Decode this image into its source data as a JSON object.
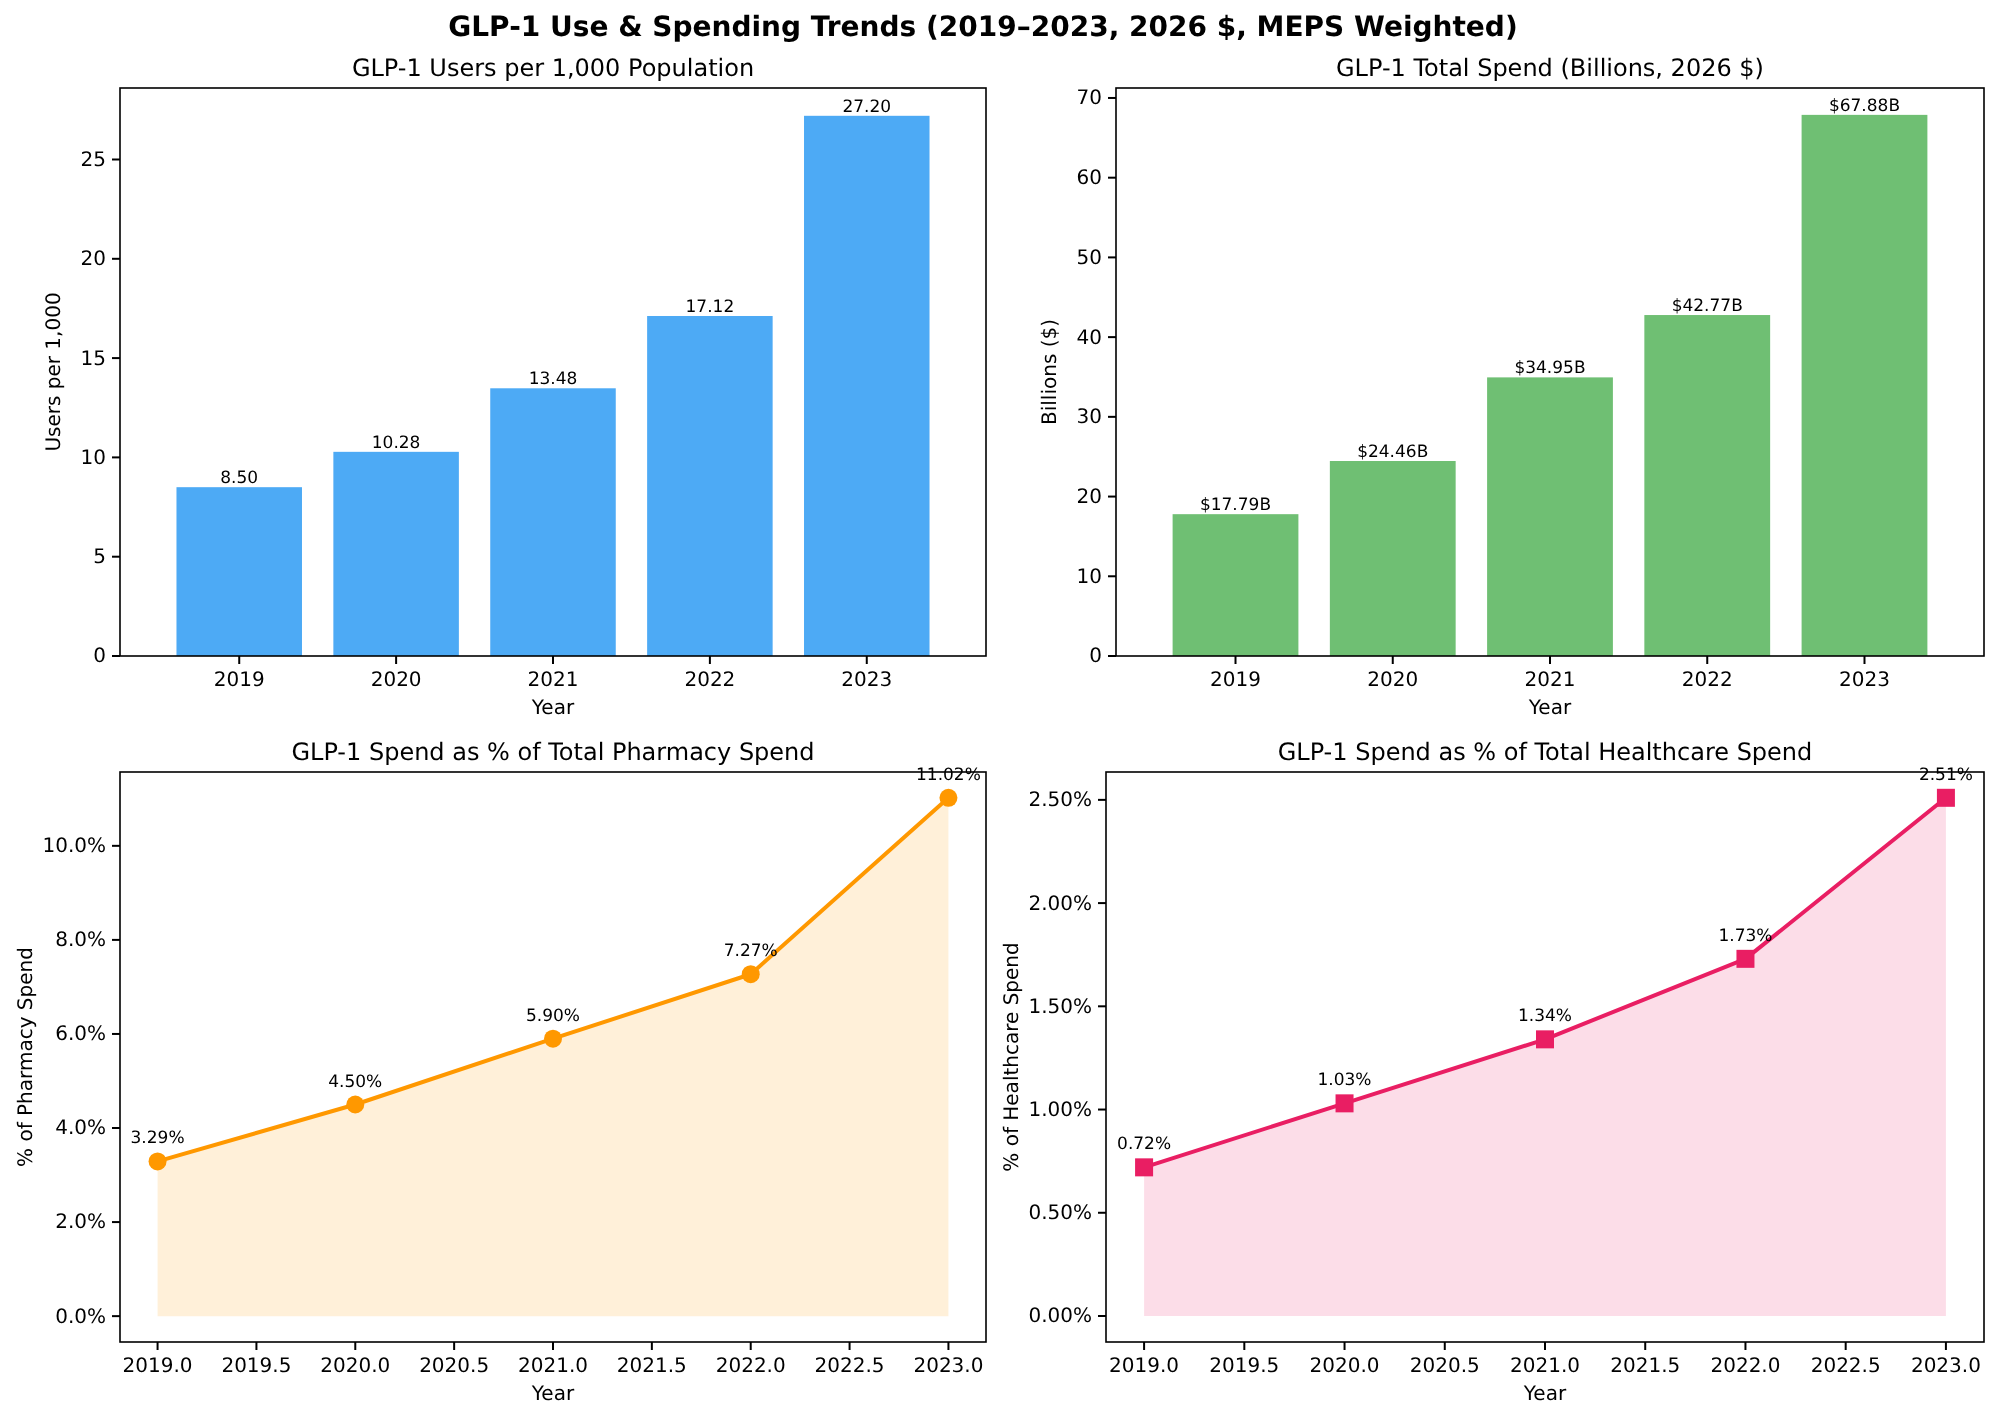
{
  "chart_data": [
    {
      "type": "other",
      "title": "GLP-1 Use & Spending Trends (2019–2023, 2026 $, MEPS Weighted)"
    },
    {
      "type": "bar",
      "title": "GLP-1 Users per 1,000 Population",
      "xlabel": "Year",
      "ylabel": "Users per 1,000",
      "categories": [
        "2019",
        "2020",
        "2021",
        "2022",
        "2023"
      ],
      "values": [
        8.5,
        10.28,
        13.48,
        17.12,
        27.2
      ],
      "value_labels": [
        "8.50",
        "10.28",
        "13.48",
        "17.12",
        "27.20"
      ],
      "color": "#4daaf5",
      "ylim": [
        0,
        28.6
      ],
      "yticks": [
        0,
        5,
        10,
        15,
        20,
        25
      ]
    },
    {
      "type": "bar",
      "title": "GLP-1 Total Spend (Billions, 2026 $)",
      "xlabel": "Year",
      "ylabel": "Billions ($)",
      "categories": [
        "2019",
        "2020",
        "2021",
        "2022",
        "2023"
      ],
      "values": [
        17.79,
        24.46,
        34.95,
        42.77,
        67.88
      ],
      "value_labels": [
        "$17.79B",
        "$24.46B",
        "$34.95B",
        "$42.77B",
        "$67.88B"
      ],
      "color": "#6fbf73",
      "ylim": [
        0,
        71.25
      ],
      "yticks": [
        0,
        10,
        20,
        30,
        40,
        50,
        60,
        70
      ]
    },
    {
      "type": "area",
      "title": "GLP-1 Spend as % of Total Pharmacy Spend",
      "xlabel": "Year",
      "ylabel": "% of Pharmacy Spend",
      "x": [
        2019,
        2020,
        2021,
        2022,
        2023
      ],
      "values": [
        3.29,
        4.5,
        5.9,
        7.27,
        11.02
      ],
      "value_labels": [
        "3.29%",
        "4.50%",
        "5.90%",
        "7.27%",
        "11.02%"
      ],
      "color": "#ff9800",
      "marker": "circle",
      "xlim": [
        2018.81,
        2023.19
      ],
      "xticks": [
        {
          "value": 2019,
          "label": "2019.0"
        },
        {
          "value": 2019.5,
          "label": "2019.5"
        },
        {
          "value": 2020,
          "label": "2020.0"
        },
        {
          "value": 2020.5,
          "label": "2020.5"
        },
        {
          "value": 2021,
          "label": "2021.0"
        },
        {
          "value": 2021.5,
          "label": "2021.5"
        },
        {
          "value": 2022,
          "label": "2022.0"
        },
        {
          "value": 2022.5,
          "label": "2022.5"
        },
        {
          "value": 2023,
          "label": "2023.0"
        }
      ],
      "ylim": [
        -0.55,
        11.57
      ],
      "yticks": [
        {
          "value": 0,
          "label": "0.0%"
        },
        {
          "value": 2,
          "label": "2.0%"
        },
        {
          "value": 4,
          "label": "4.0%"
        },
        {
          "value": 6,
          "label": "6.0%"
        },
        {
          "value": 8,
          "label": "8.0%"
        },
        {
          "value": 10,
          "label": "10.0%"
        }
      ]
    },
    {
      "type": "area",
      "title": "GLP-1 Spend as % of Total Healthcare Spend",
      "xlabel": "Year",
      "ylabel": "% of Healthcare Spend",
      "x": [
        2019,
        2020,
        2021,
        2022,
        2023
      ],
      "values": [
        0.72,
        1.03,
        1.34,
        1.73,
        2.51
      ],
      "value_labels": [
        "0.72%",
        "1.03%",
        "1.34%",
        "1.73%",
        "2.51%"
      ],
      "color": "#e91e63",
      "marker": "square",
      "xlim": [
        2018.81,
        2023.19
      ],
      "xticks": [
        {
          "value": 2019,
          "label": "2019.0"
        },
        {
          "value": 2019.5,
          "label": "2019.5"
        },
        {
          "value": 2020,
          "label": "2020.0"
        },
        {
          "value": 2020.5,
          "label": "2020.5"
        },
        {
          "value": 2021,
          "label": "2021.0"
        },
        {
          "value": 2021.5,
          "label": "2021.5"
        },
        {
          "value": 2022,
          "label": "2022.0"
        },
        {
          "value": 2022.5,
          "label": "2022.5"
        },
        {
          "value": 2023,
          "label": "2023.0"
        }
      ],
      "ylim": [
        -0.126,
        2.635
      ],
      "yticks": [
        {
          "value": 0,
          "label": "0.00%"
        },
        {
          "value": 0.5,
          "label": "0.50%"
        },
        {
          "value": 1,
          "label": "1.00%"
        },
        {
          "value": 1.5,
          "label": "1.50%"
        },
        {
          "value": 2,
          "label": "2.00%"
        },
        {
          "value": 2.5,
          "label": "2.50%"
        }
      ]
    }
  ]
}
